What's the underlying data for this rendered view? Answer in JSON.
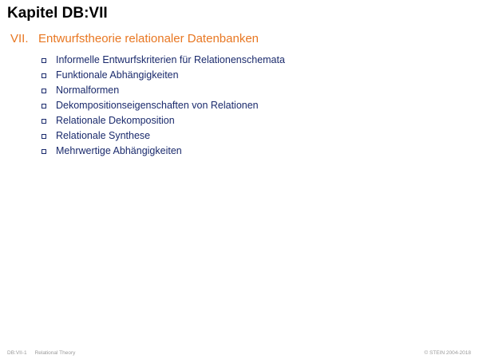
{
  "slide": {
    "title": "Kapitel DB:VII"
  },
  "section": {
    "number": "VII.",
    "title": "Entwurfstheorie relationaler Datenbanken"
  },
  "topics": [
    "Informelle Entwurfskriterien für Relationenschemata",
    "Funktionale Abhängigkeiten",
    "Normalformen",
    "Dekompositionseigenschaften von Relationen",
    "Relationale Dekomposition",
    "Relationale Synthese",
    "Mehrwertige Abhängigkeiten"
  ],
  "bullet_icon": "square-bullet-icon",
  "colors": {
    "section_heading": "#e87722",
    "topic_text": "#1a2a6c",
    "footer_text": "#9a9a9a"
  },
  "footer": {
    "slide_id": "DB:VII-1",
    "topic": "Relational Theory",
    "copyright": "© STEIN 2004-2018"
  }
}
